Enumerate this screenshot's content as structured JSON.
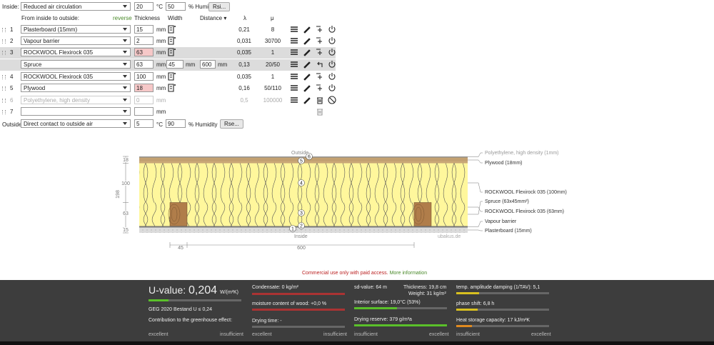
{
  "inside": {
    "label": "Inside:",
    "climate": "Reduced air circulation",
    "temperature": "20",
    "temp_unit": "°C",
    "humidity": "50",
    "humidity_unit": "% Humidity",
    "button": "Rsi..."
  },
  "header": {
    "title": "From inside to outside:",
    "reverse": "reverse",
    "thickness": "Thickness",
    "width": "Width",
    "distance": "Distance ▾",
    "lambda": "λ",
    "mu": "μ"
  },
  "layers": [
    {
      "number": "1",
      "material": "Plasterboard (15mm)",
      "thickness": "15",
      "unit": "mm",
      "lambda": "0,21",
      "mu": "8"
    },
    {
      "number": "2",
      "material": "Vapour barrier",
      "thickness": "2",
      "unit": "mm",
      "lambda": "0,031",
      "mu": "30700"
    },
    {
      "number": "3",
      "material": "ROCKWOOL Flexirock 035",
      "thickness": "63",
      "unit": "mm",
      "lambda": "0,035",
      "mu": "1"
    },
    {
      "material": "Spruce",
      "thickness": "63",
      "unit": "mm",
      "width": "45",
      "width_unit": "mm",
      "distance": "600",
      "distance_unit": "mm",
      "lambda": "0,13",
      "mu": "20/50"
    },
    {
      "number": "4",
      "material": "ROCKWOOL Flexirock 035",
      "thickness": "100",
      "unit": "mm",
      "lambda": "0,035",
      "mu": "1"
    },
    {
      "number": "5",
      "material": "Plywood",
      "thickness": "18",
      "unit": "mm",
      "lambda": "0,16",
      "mu": "50/110"
    },
    {
      "number": "6",
      "material": "Polyethylene, high density",
      "thickness": "0",
      "unit": "mm",
      "lambda": "0,5",
      "mu": "100000"
    },
    {
      "number": "7",
      "unit": "mm"
    }
  ],
  "outside": {
    "label": "Outside",
    "climate": "Direct contact to outside air",
    "temperature": "5",
    "temp_unit": "°C",
    "humidity": "90",
    "humidity_unit": "% Humidity",
    "button": "Rse..."
  },
  "diagram": {
    "outside": "Outside",
    "inside": "Inside",
    "credit": "ubakus.de",
    "left_scale": [
      "18",
      "100",
      "63",
      "15"
    ],
    "total": "198",
    "layer_labels": [
      "Polyethylene, high density (1mm)",
      "Plywood (18mm)",
      "ROCKWOOL Flexirock 035 (100mm)",
      "Spruce (63x45mm²)",
      "ROCKWOOL Flexirock 035 (63mm)",
      "Vapour barrier",
      "Plasterboard (15mm)"
    ],
    "markers": [
      "1",
      "2",
      "3",
      "4",
      "5",
      "6"
    ],
    "dimensions": [
      "45",
      "600"
    ]
  },
  "notice": {
    "text": "Commercial use only with paid access.",
    "link": "More information"
  },
  "results": {
    "u_label": "U-value:",
    "u_value": "0,204",
    "u_unit": "W/(m²K)",
    "standard": "GEG 2020 Bestand U ≤ 0,24",
    "greenhouse": "Contribution to the greenhouse effect:",
    "condensate": "Condensate: 0 kg/m²",
    "wood_moisture": "moisture content of wood: +0,0 %",
    "drying_time": "Drying time: -",
    "sd_value": "sd-value: 64 m",
    "thickness": "Thickness: 19,8 cm",
    "weight": "Weight: 31 kg/m²",
    "interior_surface": "Interior surface: 19,0°C (53%)",
    "drying_reserve": "Drying reserve: 379 g/m²a",
    "amplitude": "temp. amplitude damping (1/TAV): 5,1",
    "phase_shift": "phase shift: 6,8 h",
    "heat_storage": "Heat storage capacity: 17 kJ/m²K",
    "excellent": "excellent",
    "insufficient": "insufficient"
  }
}
